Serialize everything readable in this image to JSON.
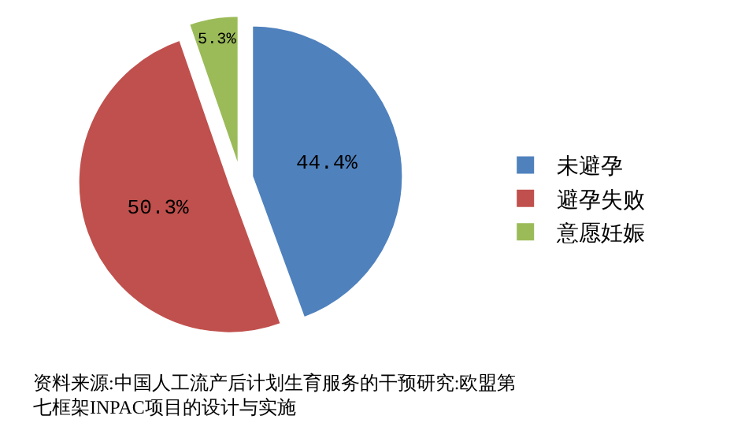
{
  "chart_data": {
    "type": "pie",
    "categories": [
      "未避孕",
      "避孕失败",
      "意愿妊娠"
    ],
    "values": [
      44.4,
      50.3,
      5.3
    ],
    "value_labels": [
      "44.4%",
      "50.3%",
      "5.3%"
    ],
    "colors": [
      "#4f81bd",
      "#c0504d",
      "#9bbb59"
    ],
    "legend": "right",
    "annotations": [
      "资料来源:中国人工流产后计划生育服务的干预研究:欧盟第七框架INPAC项目的设计与实施"
    ]
  }
}
